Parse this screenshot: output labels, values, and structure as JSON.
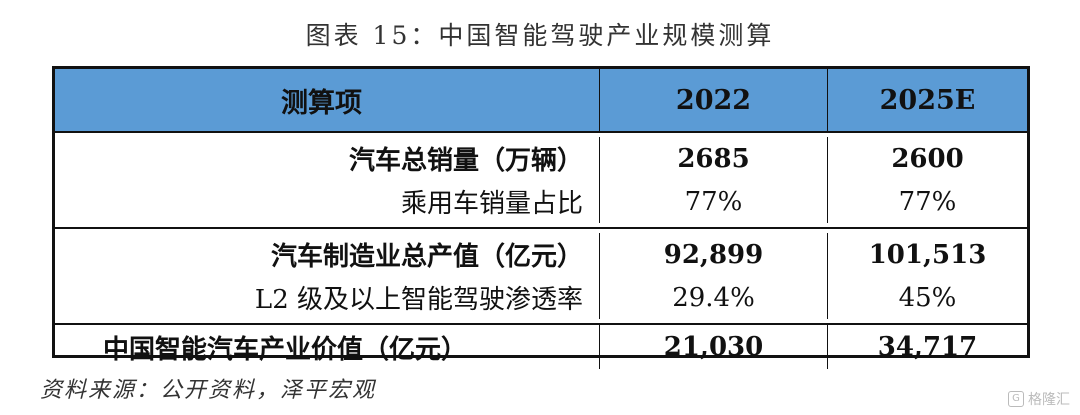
{
  "title": "图表 15：中国智能驾驶产业规模测算",
  "table": {
    "headers": [
      "测算项",
      "2022",
      "2025E"
    ],
    "groups": [
      {
        "rows": [
          {
            "label": "汽车总销量（万辆）",
            "v2022": "2685",
            "v2025": "2600",
            "bold": true
          },
          {
            "label": "乘用车销量占比",
            "v2022": "77%",
            "v2025": "77%",
            "bold": false
          }
        ]
      },
      {
        "rows": [
          {
            "label": "汽车制造业总产值（亿元）",
            "v2022": "92,899",
            "v2025": "101,513",
            "bold": true
          },
          {
            "label": "L2 级及以上智能驾驶渗透率",
            "v2022": "29.4%",
            "v2025": "45%",
            "bold": false
          }
        ]
      }
    ],
    "total": {
      "label": "中国智能汽车产业价值（亿元）",
      "v2022": "21,030",
      "v2025": "34,717"
    }
  },
  "source": "资料来源：公开资料，泽平宏观",
  "watermark": {
    "text": "格隆汇",
    "icon": "G"
  },
  "colors": {
    "header_bg": "#5b9bd5"
  }
}
